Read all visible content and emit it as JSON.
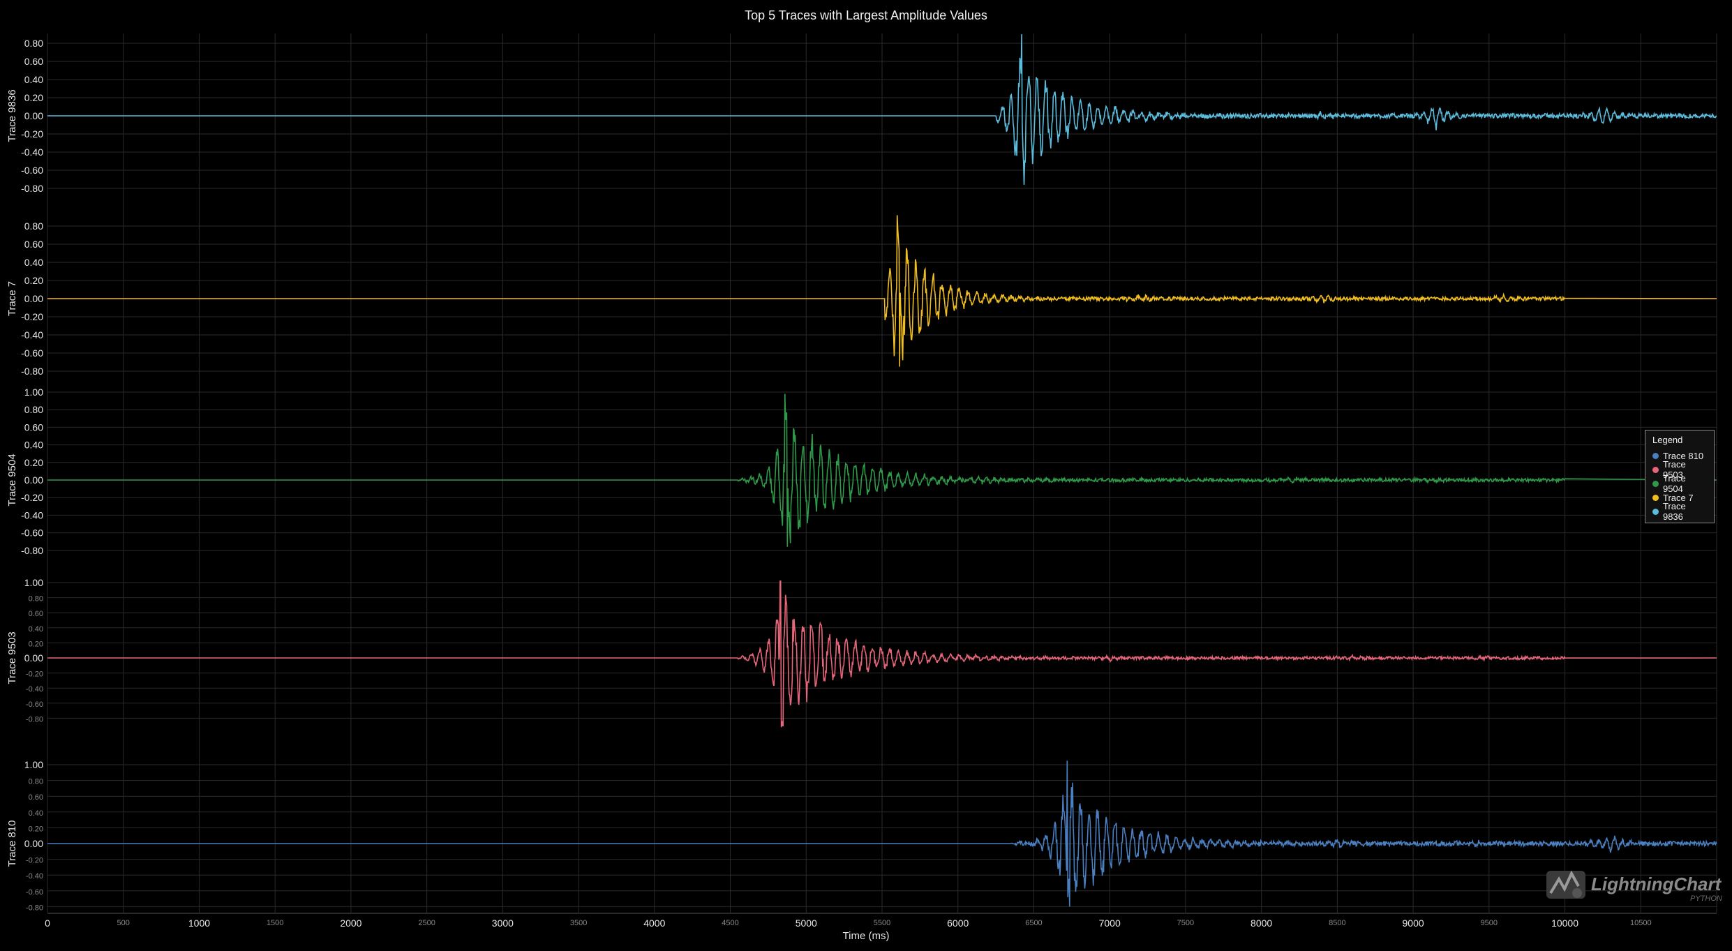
{
  "chart_data": {
    "type": "line",
    "title": "Top 5 Traces with Largest Amplitude Values",
    "xlabel": "Time (ms)",
    "xlim": [
      0,
      11000
    ],
    "x_ticks_major": [
      "0",
      "1000",
      "2000",
      "3000",
      "4000",
      "5000",
      "6000",
      "7000",
      "8000",
      "9000",
      "10000"
    ],
    "x_ticks_minor": [
      "500",
      "1500",
      "2500",
      "3500",
      "4500",
      "5500",
      "6500",
      "7500",
      "8500",
      "9500",
      "10500"
    ],
    "grid": true,
    "legend": {
      "title": "Legend",
      "placement": "right",
      "entries": [
        "Trace 810",
        "Trace 9503",
        "Trace 9504",
        "Trace 7",
        "Trace 9836"
      ]
    },
    "series": [
      {
        "name": "Trace 9836",
        "ylabel": "Trace 9836",
        "color": "#5bbcdc",
        "ylim": [
          -0.9,
          0.9
        ],
        "y_ticks": [
          "0.80",
          "0.60",
          "0.40",
          "0.20",
          "0.00",
          "-0.20",
          "-0.40",
          "-0.60",
          "-0.80"
        ],
        "onset": 6250,
        "peak_time": 6420,
        "peak": 0.9,
        "trough": -0.76,
        "decay": 280,
        "coda": 0.025,
        "end": 11000,
        "bursts": [
          [
            9150,
            0.15
          ],
          [
            10250,
            0.12
          ],
          [
            8400,
            0.04
          ]
        ]
      },
      {
        "name": "Trace 7",
        "ylabel": "Trace 7",
        "color": "#f2be1e",
        "ylim": [
          -0.9,
          0.9
        ],
        "y_ticks": [
          "0.80",
          "0.60",
          "0.40",
          "0.20",
          "0.00",
          "-0.20",
          "-0.40",
          "-0.60",
          "-0.80"
        ],
        "onset": 5520,
        "peak_time": 5600,
        "peak": 0.92,
        "trough": -0.75,
        "decay": 220,
        "coda": 0.02,
        "end": 10000,
        "bursts": [
          [
            7200,
            0.04
          ],
          [
            8400,
            0.05
          ],
          [
            9600,
            0.03
          ]
        ]
      },
      {
        "name": "Trace 9504",
        "ylabel": "Trace 9504",
        "color": "#2e9a4a",
        "ylim": [
          -0.9,
          1.05
        ],
        "y_ticks": [
          "1.00",
          "0.80",
          "0.60",
          "0.40",
          "0.20",
          "0.00",
          "-0.20",
          "-0.40",
          "-0.60",
          "-0.80"
        ],
        "onset": 4550,
        "peak_time": 4860,
        "peak": 0.98,
        "trough": -0.76,
        "decay": 350,
        "coda": 0.02,
        "end": 10000,
        "bursts": [
          [
            6100,
            0.05
          ],
          [
            8200,
            0.03
          ],
          [
            9100,
            0.03
          ]
        ]
      },
      {
        "name": "Trace 9503",
        "ylabel": "Trace 9503",
        "color": "#e8667a",
        "ylim": [
          -0.9,
          1.05
        ],
        "y_ticks": [
          "1.00",
          "0.80",
          "0.60",
          "0.40",
          "0.20",
          "0.00",
          "-0.20",
          "-0.40",
          "-0.60",
          "-0.80"
        ],
        "onset": 4550,
        "peak_time": 4830,
        "peak": 1.02,
        "trough": -0.9,
        "decay": 380,
        "coda": 0.02,
        "end": 10000,
        "bursts": [
          [
            7000,
            0.03
          ],
          [
            8600,
            0.03
          ],
          [
            9500,
            0.02
          ]
        ]
      },
      {
        "name": "Trace 810",
        "ylabel": "Trace 810",
        "color": "#4a7fc0",
        "ylim": [
          -0.8,
          1.05
        ],
        "y_ticks": [
          "1.00",
          "0.80",
          "0.60",
          "0.40",
          "0.20",
          "0.00",
          "-0.20",
          "-0.40",
          "-0.60",
          "-0.80"
        ],
        "onset": 6350,
        "peak_time": 6720,
        "peak": 1.05,
        "trough": -0.8,
        "decay": 320,
        "coda": 0.03,
        "end": 11000,
        "bursts": [
          [
            8500,
            0.05
          ],
          [
            9400,
            0.04
          ],
          [
            10300,
            0.13
          ]
        ]
      }
    ]
  },
  "logo": {
    "text": "LightningChart",
    "sub": "PYTHON",
    "mark": "®"
  }
}
